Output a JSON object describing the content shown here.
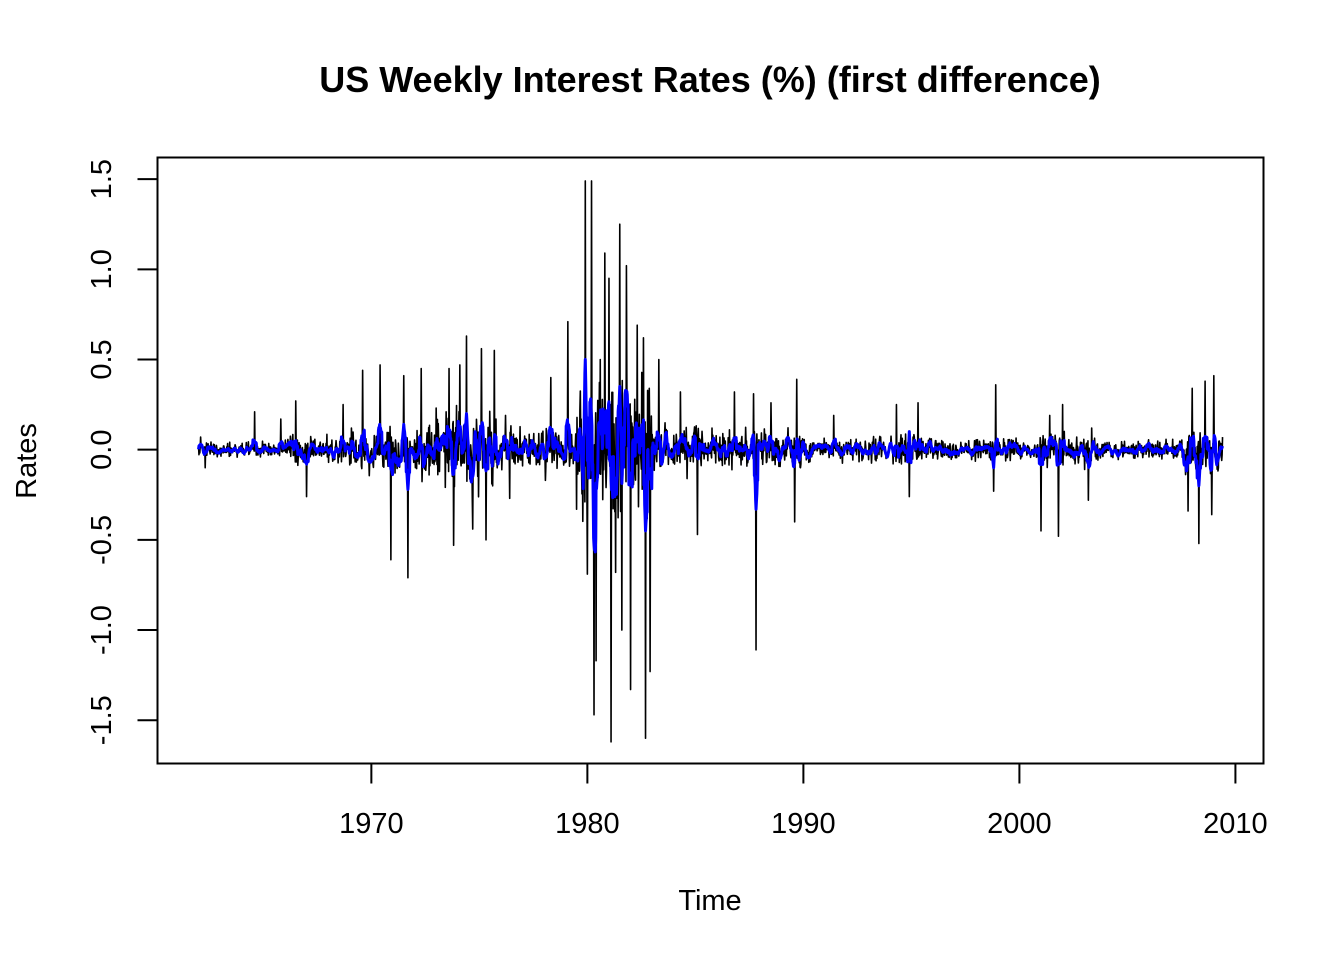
{
  "chart_data": {
    "type": "line",
    "title": "US Weekly Interest Rates (%) (first difference)",
    "xlabel": "Time",
    "ylabel": "Rates",
    "xlim": [
      1960.1,
      2011.3
    ],
    "ylim": [
      -1.74,
      1.62
    ],
    "x_ticks": [
      1970,
      1980,
      1990,
      2000,
      2010
    ],
    "y_ticks": [
      -1.5,
      -1.0,
      -0.5,
      0.0,
      0.5,
      1.0,
      1.5
    ],
    "x_tick_labels": [
      "1970",
      "1980",
      "1990",
      "2000",
      "2010"
    ],
    "y_tick_labels": [
      "-1.5",
      "-1.0",
      "-0.5",
      "0.0",
      "0.5",
      "1.0",
      "1.5"
    ],
    "grid": false,
    "legend": "none",
    "x_range_data": [
      1962.0,
      2009.4
    ],
    "series": [
      {
        "role": "first-difference",
        "color": "#000000",
        "stroke": "thin",
        "sampled_peaks": [
          {
            "x": 1962.1,
            "y": 0.07
          },
          {
            "x": 1962.3,
            "y": -0.1
          },
          {
            "x": 1964.6,
            "y": 0.21
          },
          {
            "x": 1965.8,
            "y": 0.17
          },
          {
            "x": 1966.5,
            "y": 0.27
          },
          {
            "x": 1967.0,
            "y": -0.26
          },
          {
            "x": 1968.7,
            "y": 0.25
          },
          {
            "x": 1969.6,
            "y": 0.44
          },
          {
            "x": 1970.4,
            "y": 0.47
          },
          {
            "x": 1970.9,
            "y": -0.61
          },
          {
            "x": 1971.5,
            "y": 0.41
          },
          {
            "x": 1971.7,
            "y": -0.71
          },
          {
            "x": 1972.3,
            "y": 0.45
          },
          {
            "x": 1973.6,
            "y": 0.45
          },
          {
            "x": 1973.8,
            "y": -0.53
          },
          {
            "x": 1974.1,
            "y": 0.47
          },
          {
            "x": 1974.4,
            "y": 0.63
          },
          {
            "x": 1974.7,
            "y": -0.44
          },
          {
            "x": 1975.1,
            "y": 0.56
          },
          {
            "x": 1975.3,
            "y": -0.5
          },
          {
            "x": 1975.7,
            "y": 0.55
          },
          {
            "x": 1976.4,
            "y": -0.27
          },
          {
            "x": 1978.3,
            "y": 0.4
          },
          {
            "x": 1979.1,
            "y": 0.71
          },
          {
            "x": 1979.9,
            "y": 1.49
          },
          {
            "x": 1980.0,
            "y": -0.69
          },
          {
            "x": 1980.2,
            "y": 1.49
          },
          {
            "x": 1980.3,
            "y": -1.47
          },
          {
            "x": 1980.4,
            "y": -1.17
          },
          {
            "x": 1980.6,
            "y": 0.5
          },
          {
            "x": 1980.8,
            "y": 1.09
          },
          {
            "x": 1981.0,
            "y": 0.95
          },
          {
            "x": 1981.1,
            "y": -1.62
          },
          {
            "x": 1981.3,
            "y": -0.68
          },
          {
            "x": 1981.5,
            "y": 1.25
          },
          {
            "x": 1981.6,
            "y": -1.0
          },
          {
            "x": 1981.8,
            "y": 1.02
          },
          {
            "x": 1982.0,
            "y": -1.33
          },
          {
            "x": 1982.3,
            "y": 0.69
          },
          {
            "x": 1982.6,
            "y": 0.62
          },
          {
            "x": 1982.7,
            "y": -1.6
          },
          {
            "x": 1982.9,
            "y": -1.23
          },
          {
            "x": 1983.3,
            "y": 0.5
          },
          {
            "x": 1984.3,
            "y": 0.32
          },
          {
            "x": 1985.1,
            "y": -0.47
          },
          {
            "x": 1986.8,
            "y": 0.32
          },
          {
            "x": 1987.7,
            "y": 0.31
          },
          {
            "x": 1987.8,
            "y": -1.11
          },
          {
            "x": 1988.5,
            "y": 0.26
          },
          {
            "x": 1989.7,
            "y": 0.39
          },
          {
            "x": 1989.6,
            "y": -0.4
          },
          {
            "x": 1991.4,
            "y": 0.19
          },
          {
            "x": 1994.3,
            "y": 0.25
          },
          {
            "x": 1994.9,
            "y": -0.26
          },
          {
            "x": 1995.3,
            "y": 0.26
          },
          {
            "x": 1998.9,
            "y": 0.36
          },
          {
            "x": 1998.8,
            "y": -0.23
          },
          {
            "x": 2001.0,
            "y": -0.45
          },
          {
            "x": 2001.4,
            "y": 0.19
          },
          {
            "x": 2001.8,
            "y": -0.48
          },
          {
            "x": 2002.0,
            "y": 0.25
          },
          {
            "x": 2003.2,
            "y": -0.28
          },
          {
            "x": 2007.8,
            "y": -0.34
          },
          {
            "x": 2008.0,
            "y": 0.34
          },
          {
            "x": 2008.3,
            "y": -0.52
          },
          {
            "x": 2008.6,
            "y": 0.38
          },
          {
            "x": 2008.9,
            "y": -0.36
          },
          {
            "x": 2009.0,
            "y": 0.41
          },
          {
            "x": 2009.4,
            "y": 0.07
          }
        ]
      },
      {
        "role": "smoothed",
        "color": "#0000ff",
        "stroke": "thick",
        "sampled_peaks": [
          {
            "x": 1962.1,
            "y": 0.03
          },
          {
            "x": 1966.5,
            "y": 0.05
          },
          {
            "x": 1967.0,
            "y": -0.08
          },
          {
            "x": 1971.5,
            "y": 0.14
          },
          {
            "x": 1971.7,
            "y": -0.22
          },
          {
            "x": 1974.4,
            "y": 0.2
          },
          {
            "x": 1974.7,
            "y": -0.15
          },
          {
            "x": 1979.9,
            "y": 0.5
          },
          {
            "x": 1980.3,
            "y": -0.53
          },
          {
            "x": 1981.5,
            "y": 0.35
          },
          {
            "x": 1982.7,
            "y": -0.45
          },
          {
            "x": 1987.8,
            "y": -0.33
          },
          {
            "x": 1994.9,
            "y": 0.1
          },
          {
            "x": 1998.8,
            "y": -0.1
          },
          {
            "x": 2008.3,
            "y": -0.2
          },
          {
            "x": 2009.4,
            "y": 0.02
          }
        ]
      }
    ]
  }
}
